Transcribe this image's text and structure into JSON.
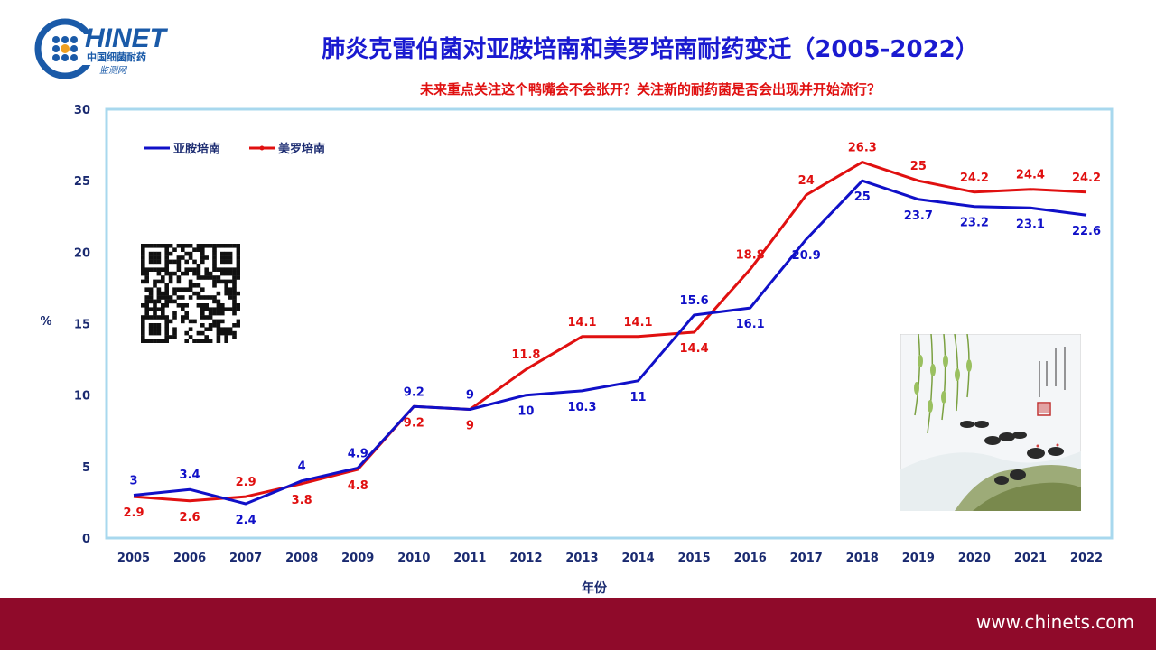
{
  "header": {
    "logo_text": "HINET",
    "logo_org": "中国细菌耐药",
    "logo_sub": "监测网",
    "title": "肺炎克雷伯菌对亚胺培南和美罗培南耐药变迁（2005-2022）",
    "subtitle": "未来重点关注这个鸭嘴会不会张开？关注新的耐药菌是否会出现并开始流行？"
  },
  "footer": {
    "url": "www.chinets.com"
  },
  "colors": {
    "imipenem": "#1010c8",
    "meropenem": "#e01010",
    "plot_border": "#a8d8ee",
    "footer": "#8f0a2a"
  },
  "chart_data": {
    "type": "line",
    "title": "肺炎克雷伯菌对亚胺培南和美罗培南耐药变迁（2005-2022）",
    "xlabel": "年份",
    "ylabel": "%",
    "x": [
      "2005",
      "2006",
      "2007",
      "2008",
      "2009",
      "2010",
      "2011",
      "2012",
      "2013",
      "2014",
      "2015",
      "2016",
      "2017",
      "2018",
      "2019",
      "2020",
      "2021",
      "2022"
    ],
    "ylim": [
      0,
      30
    ],
    "yticks": [
      "0",
      "5",
      "10",
      "15",
      "20",
      "25",
      "30"
    ],
    "grid": false,
    "legend_position": "top-left",
    "series": [
      {
        "name": "亚胺培南",
        "color": "#1010c8",
        "values": [
          3,
          3.4,
          2.4,
          4,
          4.9,
          9.2,
          9,
          10,
          10.3,
          11,
          15.6,
          16.1,
          20.9,
          25,
          23.7,
          23.2,
          23.1,
          22.6
        ]
      },
      {
        "name": "美罗培南",
        "color": "#e01010",
        "values": [
          2.9,
          2.6,
          2.9,
          3.8,
          4.8,
          9.2,
          9,
          11.8,
          14.1,
          14.1,
          14.4,
          18.8,
          24,
          26.3,
          25,
          24.2,
          24.4,
          24.2
        ]
      }
    ]
  }
}
